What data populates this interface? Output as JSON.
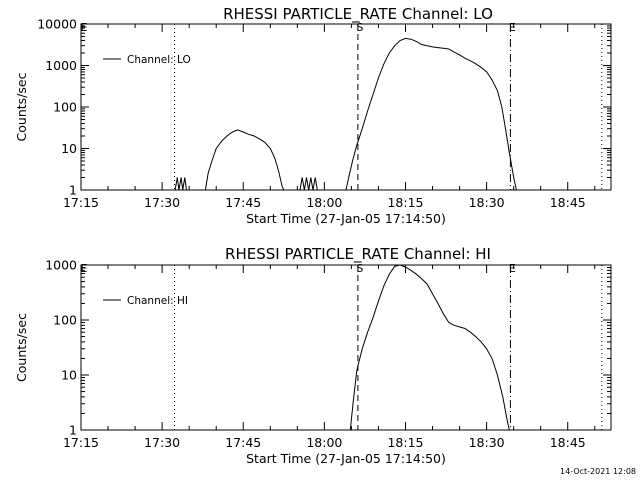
{
  "footer": {
    "timestamp": "14-Oct-2021 12:08"
  },
  "chart_data": [
    {
      "type": "line",
      "title": "RHESSI PARTICLE_RATE Channel: LO",
      "xlabel": "Start Time (27-Jan-05 17:14:50)",
      "ylabel": "Counts/sec",
      "x_tick_labels": [
        "17:15",
        "17:30",
        "17:45",
        "18:00",
        "18:15",
        "18:30",
        "18:45"
      ],
      "x_ticks_min": [
        15,
        30,
        45,
        60,
        75,
        90,
        105
      ],
      "xlim_min": [
        15,
        113
      ],
      "y_scale": "log",
      "ylim": [
        1,
        10000
      ],
      "y_tick_labels": [
        "1",
        "10",
        "100",
        "1000",
        "10000"
      ],
      "legend": {
        "entries": [
          "Channel: LO"
        ],
        "placement": "top-left"
      },
      "vlines": [
        {
          "x_min": 32.3,
          "style": "dotted",
          "label": ""
        },
        {
          "x_min": 66.2,
          "style": "dashed",
          "label": "S"
        },
        {
          "x_min": 94.4,
          "style": "dashdot",
          "label": "E"
        },
        {
          "x_min": 111.3,
          "style": "dotted",
          "label": ""
        }
      ],
      "corner_label": "E",
      "series": [
        {
          "name": "Channel: LO",
          "segments": [
            [
              [
                32.4,
                1
              ],
              [
                32.8,
                2
              ],
              [
                33.1,
                1
              ],
              [
                33.5,
                2
              ],
              [
                33.8,
                1
              ],
              [
                34.2,
                2
              ],
              [
                34.5,
                1
              ]
            ],
            [
              [
                38,
                1
              ],
              [
                38.5,
                2.5
              ],
              [
                39.2,
                5
              ],
              [
                40,
                10
              ],
              [
                41,
                15
              ],
              [
                42,
                20
              ],
              [
                43,
                25
              ],
              [
                44,
                28
              ],
              [
                45,
                25
              ],
              [
                46,
                22
              ],
              [
                47,
                20
              ],
              [
                48,
                17
              ],
              [
                49,
                14
              ],
              [
                50,
                10
              ],
              [
                50.8,
                6
              ],
              [
                51.5,
                3
              ],
              [
                52.2,
                1.2
              ],
              [
                52.5,
                1
              ]
            ],
            [
              [
                55.5,
                1
              ],
              [
                55.9,
                2
              ],
              [
                56.3,
                1
              ],
              [
                56.7,
                2
              ],
              [
                57.1,
                1
              ],
              [
                57.5,
                2
              ],
              [
                57.9,
                1
              ],
              [
                58.3,
                2
              ],
              [
                58.7,
                1
              ]
            ],
            [
              [
                64,
                1
              ],
              [
                64.5,
                2
              ],
              [
                65.2,
                5
              ],
              [
                66,
                12
              ],
              [
                67,
                30
              ],
              [
                68,
                80
              ],
              [
                69,
                200
              ],
              [
                70,
                500
              ],
              [
                71,
                1100
              ],
              [
                72,
                2000
              ],
              [
                73,
                3000
              ],
              [
                74,
                4000
              ],
              [
                75,
                4500
              ],
              [
                76,
                4300
              ],
              [
                77,
                3800
              ],
              [
                78,
                3200
              ],
              [
                79,
                3000
              ],
              [
                80,
                2800
              ],
              [
                81,
                2700
              ],
              [
                82,
                2600
              ],
              [
                83,
                2500
              ],
              [
                84,
                2100
              ],
              [
                85,
                1800
              ],
              [
                86,
                1500
              ],
              [
                87,
                1300
              ],
              [
                88,
                1100
              ],
              [
                89,
                900
              ],
              [
                90,
                700
              ],
              [
                91,
                450
              ],
              [
                92,
                250
              ],
              [
                92.8,
                100
              ],
              [
                93.5,
                30
              ],
              [
                94.2,
                8
              ],
              [
                95,
                2
              ],
              [
                95.5,
                1
              ]
            ]
          ]
        }
      ]
    },
    {
      "type": "line",
      "title": "RHESSI PARTICLE_RATE Channel: HI",
      "xlabel": "Start Time (27-Jan-05 17:14:50)",
      "ylabel": "Counts/sec",
      "x_tick_labels": [
        "17:15",
        "17:30",
        "17:45",
        "18:00",
        "18:15",
        "18:30",
        "18:45"
      ],
      "x_ticks_min": [
        15,
        30,
        45,
        60,
        75,
        90,
        105
      ],
      "xlim_min": [
        15,
        113
      ],
      "y_scale": "log",
      "ylim": [
        1,
        1000
      ],
      "y_tick_labels": [
        "1",
        "10",
        "100",
        "1000"
      ],
      "legend": {
        "entries": [
          "Channel: HI"
        ],
        "placement": "top-left"
      },
      "vlines": [
        {
          "x_min": 32.3,
          "style": "dotted",
          "label": ""
        },
        {
          "x_min": 66.2,
          "style": "dashed",
          "label": "S"
        },
        {
          "x_min": 94.4,
          "style": "dashdot",
          "label": "E"
        },
        {
          "x_min": 111.3,
          "style": "dotted",
          "label": ""
        }
      ],
      "corner_label": "E",
      "series": [
        {
          "name": "Channel: HI",
          "segments": [
            [
              [
                64.8,
                1
              ],
              [
                65.3,
                3
              ],
              [
                66,
                12
              ],
              [
                67,
                30
              ],
              [
                68,
                60
              ],
              [
                69,
                110
              ],
              [
                70,
                220
              ],
              [
                71,
                420
              ],
              [
                72,
                680
              ],
              [
                73,
                950
              ],
              [
                74,
                1000
              ],
              [
                75,
                920
              ],
              [
                76,
                800
              ],
              [
                77,
                680
              ],
              [
                78,
                560
              ],
              [
                79,
                450
              ],
              [
                80,
                300
              ],
              [
                81,
                200
              ],
              [
                82,
                130
              ],
              [
                83,
                90
              ],
              [
                84,
                80
              ],
              [
                85,
                75
              ],
              [
                86,
                70
              ],
              [
                87,
                60
              ],
              [
                88,
                50
              ],
              [
                89,
                40
              ],
              [
                90,
                30
              ],
              [
                91,
                20
              ],
              [
                92,
                10
              ],
              [
                93,
                4
              ],
              [
                93.8,
                1.5
              ],
              [
                94.2,
                1
              ]
            ]
          ]
        }
      ]
    }
  ]
}
